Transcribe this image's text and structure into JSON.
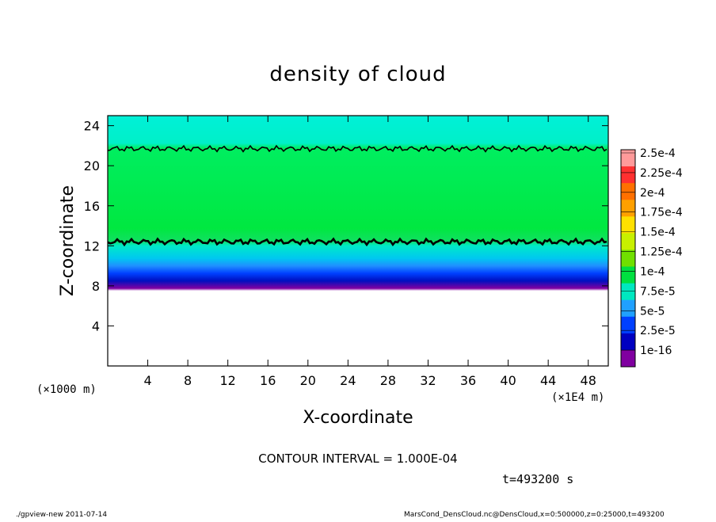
{
  "chart_data": {
    "type": "heatmap",
    "title": "density of cloud",
    "xlabel": "X-coordinate",
    "ylabel": "Z-coordinate",
    "x_ticks": [
      "4",
      "8",
      "12",
      "16",
      "20",
      "24",
      "28",
      "32",
      "36",
      "40",
      "44",
      "48"
    ],
    "y_ticks": [
      "4",
      "8",
      "12",
      "16",
      "20",
      "24"
    ],
    "xlim": [
      0,
      50
    ],
    "ylim": [
      0,
      25
    ],
    "x_unit": "(×1E4 m)",
    "y_unit": "(×1000 m)",
    "grid": false,
    "colorbar_levels": [
      "2.5e-4",
      "2.25e-4",
      "2e-4",
      "1.75e-4",
      "1.5e-4",
      "1.25e-4",
      "1e-4",
      "7.5e-5",
      "5e-5",
      "2.5e-5",
      "1e-16"
    ],
    "colorbar_colors": [
      "#ff9a9a",
      "#ff3030",
      "#ff7000",
      "#ffa000",
      "#ffe000",
      "#c8f000",
      "#70e000",
      "#00e040",
      "#00e8c0",
      "#20a0ff",
      "#0040ff",
      "#0000c0",
      "#8000a0"
    ],
    "contour_interval": "CONTOUR INTERVAL = 1.000E-04",
    "time_label": "t=493200 s",
    "bands": [
      {
        "z0": 0,
        "z1": 8.8,
        "fill": "none"
      },
      {
        "z0": 8.8,
        "z1": 9.4,
        "value": "1e-16"
      },
      {
        "z0": 9.4,
        "z1": 10.6,
        "value": "2.5e-5"
      },
      {
        "z0": 10.6,
        "z1": 11.6,
        "value": "5e-5"
      },
      {
        "z0": 11.6,
        "z1": 12.8,
        "value": "7.5e-5"
      },
      {
        "z0": 12.8,
        "z1": 22.5,
        "value": "1e-4"
      },
      {
        "z0": 22.5,
        "z1": 25,
        "value": "7.5e-5"
      }
    ],
    "contour_levels_z": [
      12.4,
      21.7
    ]
  },
  "footer": {
    "left": "./gpview-new  2011-07-14",
    "right": "MarsCond_DensCloud.nc@DensCloud,x=0:500000,z=0:25000,t=493200"
  }
}
